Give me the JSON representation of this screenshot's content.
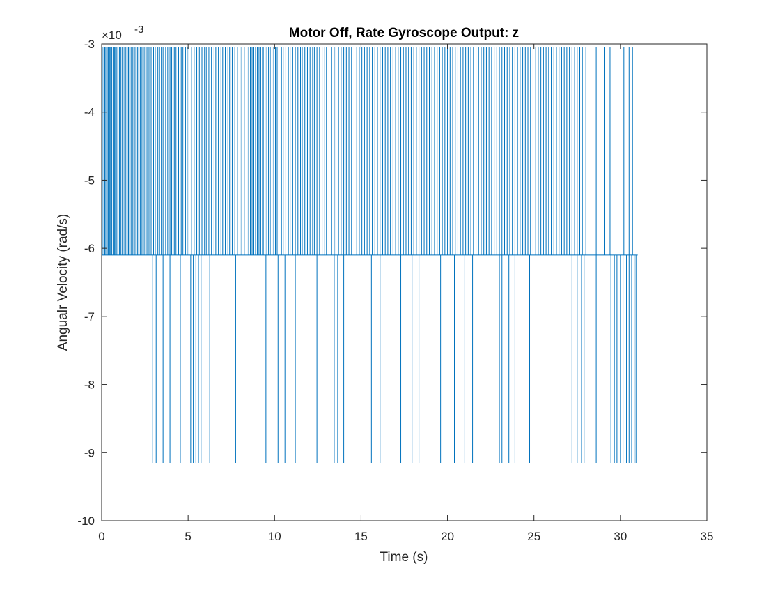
{
  "chart_data": {
    "type": "line",
    "title": "Motor Off, Rate Gyroscope Output: z",
    "xlabel": "Time (s)",
    "ylabel": "Angualr Velocity (rad/s)",
    "xlim": [
      0,
      35
    ],
    "ylim": [
      -10,
      -3
    ],
    "y_exponent_label": "×10",
    "y_exponent_power": "-3",
    "x_ticks": [
      "0",
      "5",
      "10",
      "15",
      "20",
      "25",
      "30",
      "35"
    ],
    "y_ticks": [
      "-3",
      "-4",
      "-5",
      "-6",
      "-7",
      "-8",
      "-9",
      "-10"
    ],
    "y_tick_values": [
      -3,
      -4,
      -5,
      -6,
      -7,
      -8,
      -9,
      -10
    ],
    "x_tick_values": [
      0,
      5,
      10,
      15,
      20,
      25,
      30,
      35
    ],
    "line_color": "#0072BD",
    "grid": false,
    "series": [
      {
        "levels": [
          -3.05,
          -6.1,
          -9.15
        ],
        "baseline": -6.1,
        "x_end": 31.0,
        "up_spikes": [
          0.04,
          0.13,
          0.18,
          0.24,
          0.32,
          0.38,
          0.47,
          0.52,
          0.58,
          0.66,
          0.74,
          0.8,
          0.88,
          0.95,
          1.03,
          1.1,
          1.18,
          1.24,
          1.33,
          1.4,
          1.48,
          1.55,
          1.62,
          1.7,
          1.78,
          1.86,
          1.93,
          2.0,
          2.08,
          2.15,
          2.23,
          2.3,
          2.38,
          2.46,
          2.55,
          2.62,
          2.7,
          2.78,
          2.86,
          3.0,
          3.1,
          3.25,
          3.35,
          3.45,
          3.55,
          3.7,
          3.82,
          3.95,
          4.05,
          4.2,
          4.3,
          4.45,
          4.6,
          4.7,
          4.85,
          4.95,
          5.05,
          5.2,
          5.35,
          5.5,
          5.65,
          5.8,
          5.95,
          6.05,
          6.2,
          6.35,
          6.5,
          6.6,
          6.75,
          6.9,
          7.0,
          7.15,
          7.3,
          7.4,
          7.55,
          7.7,
          7.85,
          8.0,
          8.1,
          8.25,
          8.4,
          8.5,
          8.6,
          8.7,
          8.8,
          8.9,
          9.0,
          9.1,
          9.2,
          9.3,
          9.35,
          9.45,
          9.55,
          9.65,
          9.75,
          9.85,
          9.95,
          10.05,
          10.15,
          10.25,
          10.4,
          10.5,
          10.65,
          10.8,
          10.9,
          11.05,
          11.2,
          11.35,
          11.5,
          11.6,
          11.75,
          11.9,
          12.05,
          12.2,
          12.3,
          12.45,
          12.6,
          12.75,
          12.9,
          13.0,
          13.15,
          13.3,
          13.45,
          13.55,
          13.7,
          13.85,
          14.0,
          14.15,
          14.3,
          14.45,
          14.6,
          14.75,
          14.9,
          15.05,
          15.2,
          15.35,
          15.5,
          15.65,
          15.8,
          15.95,
          16.1,
          16.25,
          16.4,
          16.55,
          16.7,
          16.85,
          17.0,
          17.15,
          17.3,
          17.45,
          17.6,
          17.75,
          17.9,
          18.05,
          18.2,
          18.35,
          18.5,
          18.65,
          18.8,
          18.95,
          19.1,
          19.25,
          19.4,
          19.55,
          19.7,
          19.85,
          20.0,
          20.15,
          20.3,
          20.45,
          20.6,
          20.75,
          20.9,
          21.05,
          21.2,
          21.35,
          21.5,
          21.65,
          21.8,
          21.95,
          22.1,
          22.25,
          22.4,
          22.55,
          22.7,
          22.85,
          23.0,
          23.15,
          23.3,
          23.45,
          23.6,
          23.75,
          23.9,
          24.05,
          24.2,
          24.35,
          24.5,
          24.65,
          24.8,
          24.95,
          25.1,
          25.25,
          25.4,
          25.55,
          25.7,
          25.85,
          26.0,
          26.15,
          26.3,
          26.45,
          26.6,
          26.75,
          26.9,
          27.05,
          27.2,
          27.35,
          27.5,
          27.65,
          27.8,
          28.0,
          28.6,
          29.1,
          29.4,
          30.2,
          30.5,
          30.7
        ],
        "down_spikes": [
          2.95,
          3.15,
          3.55,
          3.95,
          4.55,
          5.15,
          5.3,
          5.45,
          5.6,
          5.75,
          6.25,
          7.75,
          9.5,
          10.2,
          10.6,
          11.2,
          12.45,
          13.45,
          13.65,
          14.0,
          15.6,
          16.1,
          17.3,
          17.95,
          18.35,
          19.6,
          20.4,
          21.0,
          21.45,
          23.0,
          23.15,
          23.55,
          23.9,
          24.75,
          27.2,
          27.5,
          27.75,
          27.9,
          28.6,
          29.45,
          29.65,
          29.8,
          30.0,
          30.15,
          30.35,
          30.5,
          30.65,
          30.8,
          30.9
        ]
      }
    ]
  }
}
